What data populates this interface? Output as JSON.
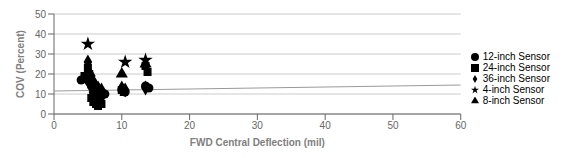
{
  "chart_data": {
    "type": "scatter",
    "xlabel": "FWD Central Deflection (mil)",
    "ylabel": "COV (Percent)",
    "xlim": [
      0,
      60
    ],
    "ylim": [
      0,
      50
    ],
    "xticks": [
      0,
      10,
      20,
      30,
      40,
      50,
      60
    ],
    "yticks": [
      0,
      10,
      20,
      30,
      40,
      50
    ],
    "grid": "y",
    "legend": "right",
    "series": [
      {
        "type": "line",
        "color": "#999999",
        "x": [
          0,
          60
        ],
        "values": [
          11.5,
          14.5
        ]
      },
      {
        "name": "36-inch Sensor",
        "type": "scatter",
        "marker": "diamond",
        "color": "black",
        "x": [
          5.0,
          5.2,
          5.5,
          6.0,
          6.5,
          7.0,
          10.0,
          10.5,
          13.5
        ],
        "values": [
          26,
          16,
          19,
          15,
          13,
          12,
          13,
          12,
          13
        ]
      },
      {
        "name": "24-inch Sensor",
        "type": "scatter",
        "marker": "square",
        "color": "black",
        "x": [
          4.5,
          5.0,
          5.2,
          5.5,
          5.8,
          6.0,
          6.2,
          6.5,
          7.0,
          10.0,
          10.3,
          13.5,
          13.8
        ],
        "values": [
          19,
          23,
          20,
          8,
          6,
          6,
          5,
          4,
          5,
          12,
          11,
          24,
          21
        ]
      },
      {
        "name": "12-inch Sensor",
        "type": "scatter",
        "marker": "circle",
        "color": "black",
        "x": [
          4.0,
          4.5,
          5.0,
          5.2,
          5.5,
          5.8,
          6.0,
          6.2,
          6.5,
          7.0,
          7.5,
          10.0,
          10.5,
          13.5,
          14.0
        ],
        "values": [
          17,
          18,
          17,
          16,
          14,
          11,
          10,
          9,
          11,
          9,
          10,
          12,
          11,
          14,
          13
        ]
      },
      {
        "name": "8-inch Sensor",
        "type": "scatter",
        "marker": "triangle",
        "color": "black",
        "x": [
          5.0,
          5.5,
          10.0,
          13.5
        ],
        "values": [
          20,
          18,
          20,
          25
        ]
      },
      {
        "name": "4-inch Sensor",
        "type": "scatter",
        "marker": "star",
        "color": "black",
        "x": [
          5.0,
          10.5,
          13.5
        ],
        "values": [
          35,
          26,
          27
        ]
      }
    ]
  }
}
